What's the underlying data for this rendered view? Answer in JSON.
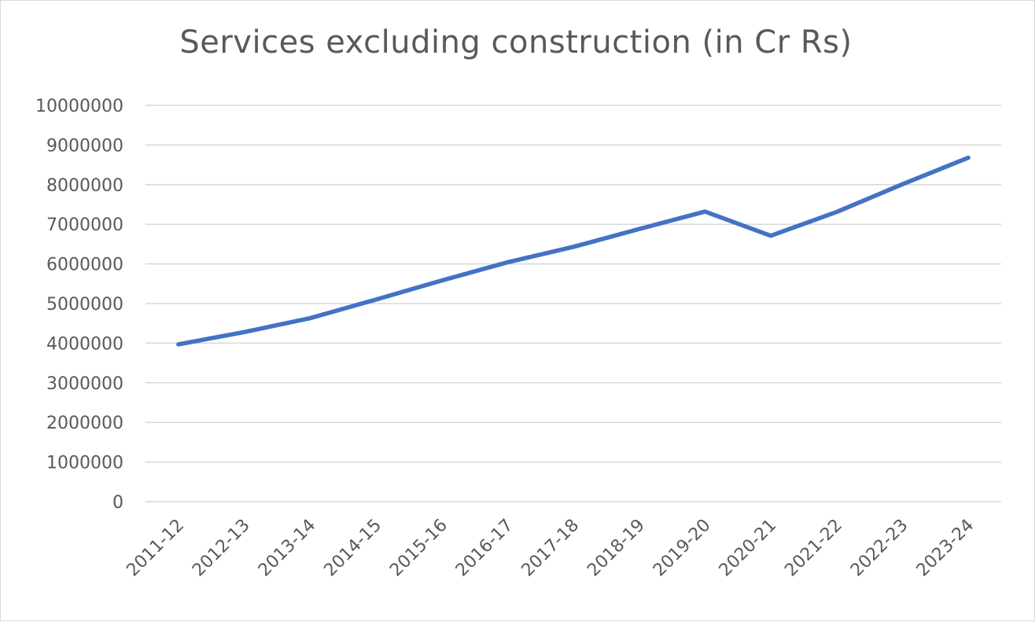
{
  "chart_data": {
    "type": "line",
    "title": "Services excluding construction (in Cr Rs)",
    "xlabel": "",
    "ylabel": "",
    "categories": [
      "2011-12",
      "2012-13",
      "2013-14",
      "2014-15",
      "2015-16",
      "2016-17",
      "2017-18",
      "2018-19",
      "2019-20",
      "2020-21",
      "2021-22",
      "2022-23",
      "2023-24"
    ],
    "series": [
      {
        "values": [
          3970000,
          4280000,
          4630000,
          5100000,
          5580000,
          6040000,
          6430000,
          6880000,
          7320000,
          6710000,
          7310000,
          8010000,
          8680000
        ],
        "color": "#4472C4"
      }
    ],
    "ylim": [
      0,
      10000000
    ],
    "yticks": [
      "0",
      "1000000",
      "2000000",
      "3000000",
      "4000000",
      "5000000",
      "6000000",
      "7000000",
      "8000000",
      "9000000",
      "10000000"
    ],
    "grid": true,
    "gridColor": "#d9d9d9",
    "legend": "none"
  }
}
